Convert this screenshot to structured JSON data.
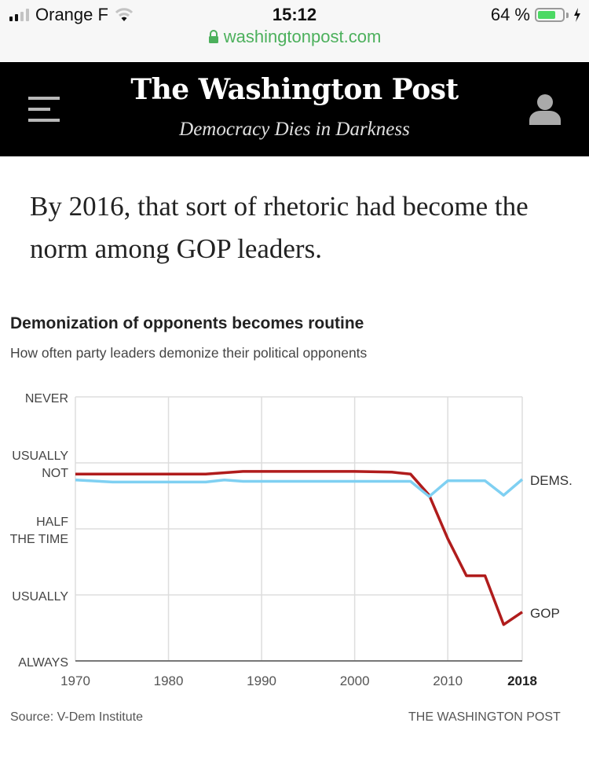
{
  "status_bar": {
    "carrier": "Orange F",
    "time": "15:12",
    "url": "washingtonpost.com",
    "battery_text": "64 %",
    "battery_level": 0.64,
    "signal_bars_active": 2,
    "icons": [
      "signal-icon",
      "wifi-icon",
      "lock-icon",
      "battery-icon",
      "charging-bolt-icon"
    ]
  },
  "masthead": {
    "logo": "The Washington Post",
    "tagline": "Democracy Dies in Darkness",
    "icons": [
      "menu-icon",
      "user-icon"
    ]
  },
  "article": {
    "lede": "By 2016, that sort of rhetoric had become the norm among GOP leaders."
  },
  "colors": {
    "gop": "#b01c1c",
    "dems": "#7fd0f2",
    "grid": "#dddddd",
    "axis": "#777777",
    "url_green": "#4cb05c"
  },
  "chart_data": {
    "type": "line",
    "title": "Demonization of opponents becomes routine",
    "subtitle": "How often party leaders demonize their political opponents",
    "xlabel": "",
    "ylabel": "",
    "xlim": [
      1970,
      2018
    ],
    "ylim": [
      0,
      4
    ],
    "x_ticks": [
      1970,
      1980,
      1990,
      2000,
      2010,
      2018
    ],
    "x_tick_labels": [
      "1970",
      "1980",
      "1990",
      "2000",
      "2010",
      "2018"
    ],
    "x_tick_bold": "2018",
    "y_ticks": [
      {
        "value": 4,
        "label": [
          "NEVER"
        ]
      },
      {
        "value": 3,
        "label": [
          "USUALLY",
          "NOT"
        ]
      },
      {
        "value": 2,
        "label": [
          "HALF",
          "THE TIME"
        ]
      },
      {
        "value": 1,
        "label": [
          "USUALLY"
        ]
      },
      {
        "value": 0,
        "label": [
          "ALWAYS"
        ]
      }
    ],
    "grid": true,
    "legend": "direct-labels-right",
    "series": [
      {
        "name": "GOP",
        "label": "GOP",
        "color": "#b01c1c",
        "points": [
          [
            1970,
            2.83
          ],
          [
            1980,
            2.83
          ],
          [
            1984,
            2.83
          ],
          [
            1988,
            2.87
          ],
          [
            2000,
            2.87
          ],
          [
            2004,
            2.86
          ],
          [
            2006,
            2.83
          ],
          [
            2007,
            2.67
          ],
          [
            2008,
            2.51
          ],
          [
            2010,
            1.85
          ],
          [
            2012,
            1.29
          ],
          [
            2014,
            1.29
          ],
          [
            2016,
            0.55
          ],
          [
            2018,
            0.74
          ]
        ]
      },
      {
        "name": "Dems.",
        "label": "DEMS.",
        "color": "#7fd0f2",
        "points": [
          [
            1970,
            2.74
          ],
          [
            1974,
            2.71
          ],
          [
            1984,
            2.71
          ],
          [
            1986,
            2.74
          ],
          [
            1988,
            2.72
          ],
          [
            2000,
            2.72
          ],
          [
            2006,
            2.72
          ],
          [
            2008,
            2.49
          ],
          [
            2010,
            2.73
          ],
          [
            2014,
            2.73
          ],
          [
            2016,
            2.51
          ],
          [
            2018,
            2.75
          ]
        ]
      }
    ],
    "source": "Source: V-Dem Institute",
    "credit": "THE WASHINGTON POST"
  }
}
